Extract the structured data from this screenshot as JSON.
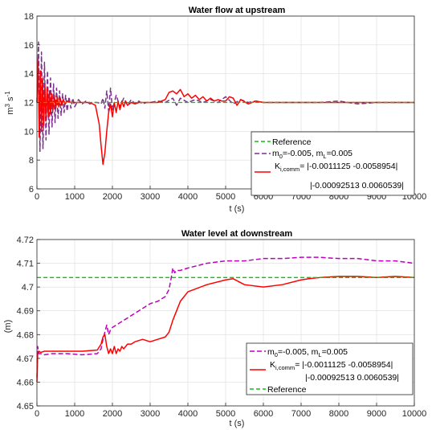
{
  "chart_data": [
    {
      "type": "line",
      "title": "Water flow at upstream",
      "xlabel": "t (s)",
      "ylabel": "m3 s-1",
      "ylabel_parts": {
        "base1": "m",
        "sup1": "3",
        "base2": " s",
        "sup2": "-1"
      },
      "xlim": [
        0,
        10000
      ],
      "ylim": [
        6,
        18
      ],
      "xticks": [
        0,
        1000,
        2000,
        3000,
        4000,
        5000,
        6000,
        7000,
        8000,
        9000,
        10000
      ],
      "yticks": [
        6,
        8,
        10,
        12,
        14,
        16,
        18
      ],
      "grid": true,
      "legend_position": "bottom-right",
      "legend": {
        "reference": "Reference",
        "mixed_pre": "m",
        "mixed_sub0": "0",
        "mixed_mid": "=-0.005, m",
        "mixed_subL": "L",
        "mixed_post": "=0.005",
        "k_pre": "K",
        "k_sub": "i,comm",
        "k_row1": "= |-0.0011125     -0.0058954|",
        "k_row2": "|-0.00092513   0.0060539|"
      },
      "colors": {
        "reference": "#00cc00",
        "mixed": "#7e2f8e",
        "k": "#ff0000"
      },
      "series": [
        {
          "key": "reference",
          "dash": "5,3",
          "x": [
            0,
            10000
          ],
          "y": [
            12,
            12
          ]
        },
        {
          "key": "mixed",
          "dash": "6,3",
          "x": [
            0,
            40,
            80,
            120,
            160,
            200,
            240,
            280,
            320,
            360,
            400,
            440,
            480,
            520,
            560,
            600,
            640,
            680,
            720,
            760,
            800,
            850,
            900,
            950,
            1000,
            1100,
            1200,
            1300,
            1400,
            1500,
            1600,
            1700,
            1750,
            1800,
            1850,
            1900,
            1950,
            2000,
            2100,
            2200,
            2300,
            2400,
            2500,
            2600,
            2700,
            2800,
            2900,
            3000,
            3200,
            3400,
            3600,
            3700,
            3800,
            4000,
            4200,
            4400,
            4600,
            4800,
            5000,
            5200,
            5400,
            5600,
            5800,
            6000,
            6500,
            7000,
            7500,
            8000,
            8500,
            9000,
            9500,
            10000
          ],
          "y": [
            12,
            16.2,
            8.6,
            15.5,
            8.8,
            14.8,
            9.4,
            14.2,
            9.8,
            13.7,
            10.3,
            13.3,
            10.6,
            13.0,
            10.9,
            12.8,
            11.1,
            12.6,
            11.3,
            12.5,
            11.4,
            12.4,
            11.6,
            12.3,
            11.7,
            12.2,
            11.9,
            12.1,
            11.9,
            12.0,
            12.0,
            11.9,
            12.3,
            11.6,
            12.8,
            11.4,
            13.0,
            11.5,
            12.5,
            11.7,
            12.3,
            11.8,
            12.2,
            11.9,
            12.1,
            11.9,
            12.0,
            12.0,
            12.1,
            12.0,
            12.3,
            11.8,
            12.3,
            12.0,
            12.2,
            12.0,
            12.2,
            12.0,
            12.4,
            11.9,
            12.2,
            12.0,
            12.1,
            12.0,
            12.0,
            12.0,
            12.0,
            12.1,
            11.9,
            12.0,
            12.0,
            12.0
          ]
        },
        {
          "key": "k",
          "dash": "",
          "x": [
            0,
            30,
            60,
            90,
            120,
            150,
            180,
            210,
            240,
            270,
            300,
            330,
            360,
            390,
            420,
            460,
            500,
            540,
            580,
            620,
            660,
            700,
            750,
            800,
            900,
            1000,
            1200,
            1400,
            1550,
            1650,
            1700,
            1750,
            1800,
            1850,
            1900,
            1950,
            2000,
            2050,
            2100,
            2150,
            2200,
            2250,
            2300,
            2350,
            2400,
            2500,
            2600,
            2700,
            2800,
            3000,
            3200,
            3400,
            3500,
            3600,
            3700,
            3800,
            3900,
            4000,
            4100,
            4200,
            4300,
            4400,
            4500,
            4600,
            4700,
            4800,
            4900,
            5000,
            5100,
            5200,
            5300,
            5400,
            5600,
            5800,
            6000,
            6500,
            7000,
            7500,
            8000,
            8500,
            9000,
            9500,
            10000
          ],
          "y": [
            12,
            15.0,
            9.6,
            14.2,
            10.0,
            13.7,
            10.4,
            13.3,
            10.7,
            13.0,
            11.0,
            12.8,
            11.2,
            12.6,
            11.4,
            12.5,
            11.6,
            12.4,
            11.7,
            12.3,
            11.8,
            12.2,
            11.9,
            12.1,
            12.0,
            12.0,
            12.0,
            12.0,
            11.8,
            10.5,
            9.0,
            7.7,
            8.5,
            10.0,
            11.3,
            11.9,
            11.0,
            12.0,
            11.3,
            12.1,
            11.5,
            12.1,
            11.7,
            12.1,
            11.8,
            12.0,
            11.9,
            12.0,
            12.0,
            12.0,
            12.0,
            12.2,
            12.7,
            12.8,
            12.6,
            12.9,
            12.4,
            12.6,
            12.3,
            12.5,
            12.2,
            12.4,
            12.1,
            12.3,
            12.1,
            12.2,
            12.1,
            12.1,
            12.4,
            12.3,
            11.8,
            12.2,
            11.9,
            12.1,
            12.0,
            12.0,
            12.0,
            12.0,
            12.0,
            12.0,
            12.0,
            12.0,
            12.0
          ]
        }
      ]
    },
    {
      "type": "line",
      "title": "Water level at downstream",
      "xlabel": "t (s)",
      "ylabel": "(m)",
      "xlim": [
        0,
        10000
      ],
      "ylim": [
        4.65,
        4.72
      ],
      "xticks": [
        0,
        1000,
        2000,
        3000,
        4000,
        5000,
        6000,
        7000,
        8000,
        9000,
        10000
      ],
      "yticks": [
        4.65,
        4.66,
        4.67,
        4.68,
        4.69,
        4.7,
        4.71,
        4.72
      ],
      "ytick_labels": [
        "4.65",
        "4.66",
        "4.67",
        "4.68",
        "4.69",
        "4.7",
        "4.71",
        "4.72"
      ],
      "grid": true,
      "legend_position": "bottom-right",
      "legend": {
        "mixed_pre": "m",
        "mixed_sub0": "0",
        "mixed_mid": "=-0.005, m",
        "mixed_subL": "L",
        "mixed_post": "=0.005",
        "k_pre": "K",
        "k_sub": "i,comm",
        "k_row1": "= |-0.0011125     -0.0058954|",
        "k_row2": "|-0.00092513   0.0060539|",
        "reference": "Reference"
      },
      "colors": {
        "reference": "#00cc00",
        "mixed": "#bf00bf",
        "k": "#ff0000"
      },
      "series": [
        {
          "key": "reference",
          "dash": "5,3",
          "x": [
            0,
            10000
          ],
          "y": [
            4.704,
            4.704
          ]
        },
        {
          "key": "mixed",
          "dash": "6,3",
          "x": [
            0,
            20,
            50,
            100,
            200,
            400,
            800,
            1200,
            1600,
            1700,
            1750,
            1800,
            1850,
            1900,
            1950,
            2000,
            2100,
            2200,
            2400,
            2600,
            2800,
            3000,
            3200,
            3400,
            3500,
            3560,
            3600,
            3650,
            3700,
            3800,
            4000,
            4500,
            5000,
            5500,
            6000,
            6500,
            7000,
            7500,
            8000,
            8500,
            9000,
            9500,
            10000
          ],
          "y": [
            4.662,
            4.675,
            4.672,
            4.672,
            4.6715,
            4.672,
            4.672,
            4.6715,
            4.672,
            4.674,
            4.678,
            4.681,
            4.684,
            4.68,
            4.682,
            4.683,
            4.684,
            4.685,
            4.687,
            4.689,
            4.691,
            4.693,
            4.694,
            4.696,
            4.699,
            4.704,
            4.708,
            4.706,
            4.707,
            4.707,
            4.708,
            4.71,
            4.711,
            4.711,
            4.712,
            4.712,
            4.7125,
            4.7125,
            4.712,
            4.712,
            4.711,
            4.711,
            4.71
          ]
        },
        {
          "key": "k",
          "dash": "",
          "x": [
            0,
            20,
            50,
            100,
            200,
            400,
            800,
            1200,
            1600,
            1700,
            1750,
            1800,
            1850,
            1900,
            1950,
            2000,
            2050,
            2100,
            2150,
            2200,
            2250,
            2300,
            2400,
            2500,
            2600,
            2800,
            3000,
            3200,
            3400,
            3500,
            3600,
            3700,
            3800,
            4000,
            4500,
            5000,
            5200,
            5500,
            6000,
            6500,
            7000,
            7200,
            7500,
            8000,
            8500,
            9000,
            9500,
            10000
          ],
          "y": [
            4.66,
            4.672,
            4.673,
            4.6725,
            4.673,
            4.673,
            4.673,
            4.673,
            4.6735,
            4.676,
            4.679,
            4.68,
            4.675,
            4.672,
            4.674,
            4.672,
            4.675,
            4.672,
            4.674,
            4.673,
            4.675,
            4.674,
            4.676,
            4.676,
            4.677,
            4.678,
            4.677,
            4.678,
            4.679,
            4.681,
            4.686,
            4.69,
            4.694,
            4.698,
            4.701,
            4.703,
            4.7035,
            4.701,
            4.7,
            4.701,
            4.703,
            4.7035,
            4.704,
            4.7045,
            4.7045,
            4.704,
            4.7045,
            4.704
          ]
        }
      ]
    }
  ]
}
